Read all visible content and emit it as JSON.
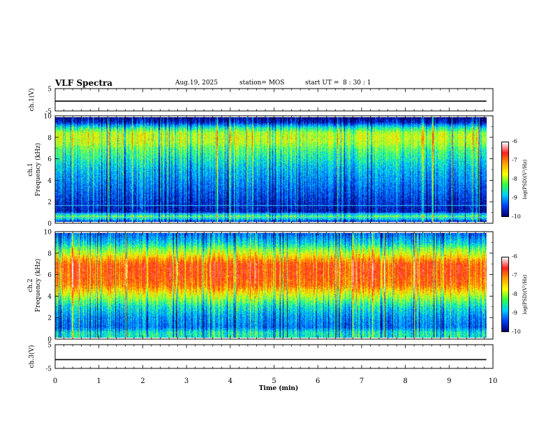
{
  "header": {
    "title": "VLF Spectra",
    "date": "Aug.19, 2025",
    "station": "station= MOS",
    "start_ut": "start UT =  8 : 30 : 1"
  },
  "axes": {
    "ch1_voltage_label": "ch.1(V)",
    "ch1_freq_label_top": "ch.1",
    "ch1_freq_label_bottom": "Frequency (kHz)",
    "ch2_freq_label_top": "ch.2",
    "ch2_freq_label_bottom": "Frequency (kHz)",
    "ch3_voltage_label": "ch.3(V)",
    "xlabel": "Time  (min)"
  },
  "colorbar": {
    "label": "log(PSD)(V²/Hz)",
    "ticks": [
      "-6",
      "-7",
      "-8",
      "-9",
      "-10"
    ],
    "colors": [
      "#ffffff",
      "#ff2020",
      "#ffa000",
      "#ffff00",
      "#30ff40",
      "#00d0ff",
      "#0040ff",
      "#000070"
    ]
  },
  "chart_data": [
    {
      "type": "line",
      "panel": "ch.1 waveform",
      "ylabel": "ch.1(V)",
      "ylim": [
        -5,
        5
      ],
      "yticks": [
        "5",
        "-5"
      ],
      "xlim": [
        0,
        10
      ],
      "series": [
        {
          "x": [
            0,
            9.85
          ],
          "y": [
            -0.6,
            -0.6
          ]
        }
      ]
    },
    {
      "type": "heatmap",
      "panel": "ch.1 spectrogram",
      "ylabel": "Frequency (kHz)",
      "ylim": [
        0,
        10
      ],
      "yticks": [
        "10",
        "8",
        "6",
        "4",
        "2",
        "0"
      ],
      "xlim": [
        0,
        10
      ],
      "data_end_min": 9.85,
      "color_range": [
        -10,
        -6
      ],
      "band_kHz": [
        [
          0.0,
          -9.6
        ],
        [
          0.5,
          -8.2
        ],
        [
          1.0,
          -9.7
        ],
        [
          2.0,
          -9.5
        ],
        [
          3.0,
          -9.3
        ],
        [
          4.0,
          -9.1
        ],
        [
          5.0,
          -8.9
        ],
        [
          6.0,
          -8.6
        ],
        [
          7.0,
          -8.3
        ],
        [
          7.5,
          -8.0
        ],
        [
          8.0,
          -7.9
        ],
        [
          8.5,
          -8.0
        ],
        [
          9.0,
          -8.6
        ],
        [
          9.5,
          -9.6
        ],
        [
          10.0,
          -9.9
        ]
      ],
      "lines_kHz": [
        0.5,
        0.8,
        1.6
      ]
    },
    {
      "type": "heatmap",
      "panel": "ch.2 spectrogram",
      "ylabel": "Frequency (kHz)",
      "ylim": [
        0,
        10
      ],
      "yticks": [
        "10",
        "8",
        "6",
        "4",
        "2",
        "0"
      ],
      "xlim": [
        0,
        10
      ],
      "data_end_min": 9.85,
      "color_range": [
        -10,
        -6
      ],
      "band_kHz": [
        [
          0.0,
          -8.6
        ],
        [
          0.5,
          -8.6
        ],
        [
          1.0,
          -9.2
        ],
        [
          2.0,
          -9.0
        ],
        [
          3.0,
          -8.6
        ],
        [
          4.0,
          -7.9
        ],
        [
          4.5,
          -7.5
        ],
        [
          5.0,
          -7.1
        ],
        [
          6.0,
          -6.9
        ],
        [
          7.0,
          -6.9
        ],
        [
          7.5,
          -7.3
        ],
        [
          8.0,
          -7.8
        ],
        [
          8.5,
          -8.2
        ],
        [
          9.0,
          -8.7
        ],
        [
          10.0,
          -9.3
        ]
      ],
      "lines_kHz": []
    },
    {
      "type": "line",
      "panel": "ch.3 waveform",
      "ylabel": "ch.3(V)",
      "ylim": [
        -5,
        5
      ],
      "yticks": [
        "5",
        "-5"
      ],
      "xlim": [
        0,
        10
      ],
      "xticks": [
        "0",
        "1",
        "2",
        "3",
        "4",
        "5",
        "6",
        "7",
        "8",
        "9",
        "10"
      ],
      "xlabel": "Time  (min)",
      "series": [
        {
          "x": [
            0,
            9.85
          ],
          "y": [
            -1.3,
            -1.3
          ]
        }
      ]
    }
  ]
}
